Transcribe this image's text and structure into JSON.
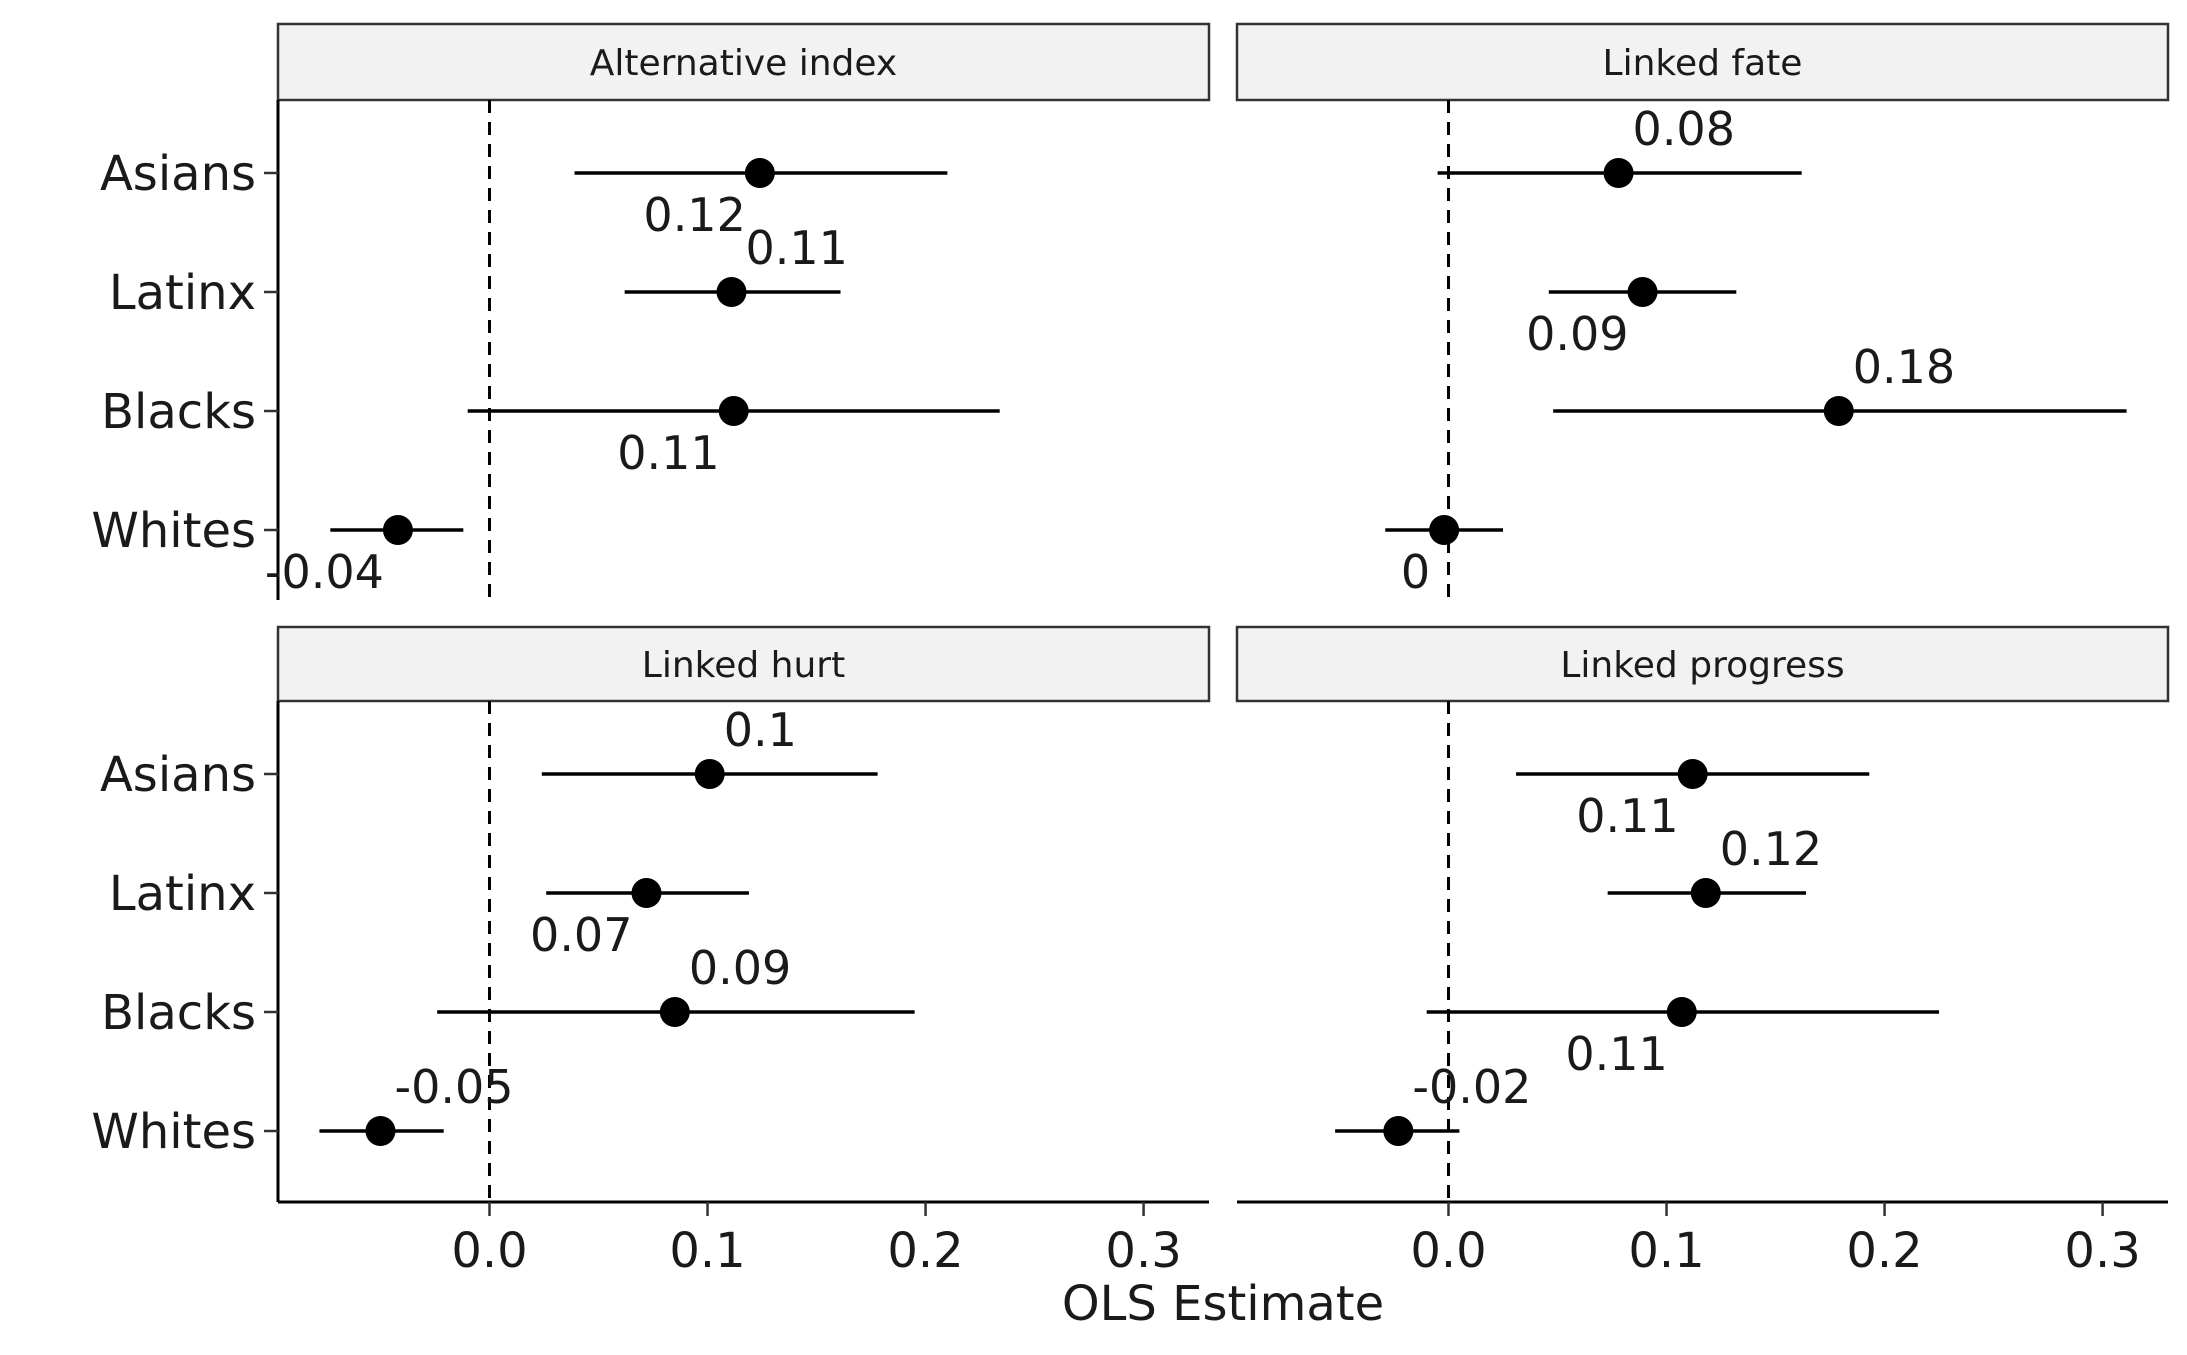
{
  "chart_data": {
    "type": "forest",
    "xlabel": "OLS Estimate",
    "ylabel": "",
    "xlim": [
      -0.097,
      0.33
    ],
    "xticks": [
      0.0,
      0.1,
      0.2,
      0.3
    ],
    "xtick_labels": [
      "0.0",
      "0.1",
      "0.2",
      "0.3"
    ],
    "reference_line": 0,
    "grid": false,
    "categories": [
      "Asians",
      "Latinx",
      "Blacks",
      "Whites"
    ],
    "panels": [
      {
        "title": "Alternative index",
        "points": [
          {
            "group": "Asians",
            "estimate": 0.124,
            "lower": 0.039,
            "upper": 0.21,
            "label": "0.12",
            "label_pos": "below-left"
          },
          {
            "group": "Latinx",
            "estimate": 0.111,
            "lower": 0.062,
            "upper": 0.161,
            "label": "0.11",
            "label_pos": "above-right"
          },
          {
            "group": "Blacks",
            "estimate": 0.112,
            "lower": -0.01,
            "upper": 0.234,
            "label": "0.11",
            "label_pos": "below-left"
          },
          {
            "group": "Whites",
            "estimate": -0.042,
            "lower": -0.073,
            "upper": -0.012,
            "label": "-0.04",
            "label_pos": "below-left"
          }
        ]
      },
      {
        "title": "Linked fate",
        "points": [
          {
            "group": "Asians",
            "estimate": 0.078,
            "lower": -0.005,
            "upper": 0.162,
            "label": "0.08",
            "label_pos": "above-right"
          },
          {
            "group": "Latinx",
            "estimate": 0.089,
            "lower": 0.046,
            "upper": 0.132,
            "label": "0.09",
            "label_pos": "below-left"
          },
          {
            "group": "Blacks",
            "estimate": 0.179,
            "lower": 0.048,
            "upper": 0.311,
            "label": "0.18",
            "label_pos": "above-right"
          },
          {
            "group": "Whites",
            "estimate": -0.002,
            "lower": -0.029,
            "upper": 0.025,
            "label": "0",
            "label_pos": "below-left"
          }
        ]
      },
      {
        "title": "Linked hurt",
        "points": [
          {
            "group": "Asians",
            "estimate": 0.101,
            "lower": 0.024,
            "upper": 0.178,
            "label": "0.1",
            "label_pos": "above-right"
          },
          {
            "group": "Latinx",
            "estimate": 0.072,
            "lower": 0.026,
            "upper": 0.119,
            "label": "0.07",
            "label_pos": "below-left"
          },
          {
            "group": "Blacks",
            "estimate": 0.085,
            "lower": -0.024,
            "upper": 0.195,
            "label": "0.09",
            "label_pos": "above-right"
          },
          {
            "group": "Whites",
            "estimate": -0.05,
            "lower": -0.078,
            "upper": -0.021,
            "label": "-0.05",
            "label_pos": "above-right"
          }
        ]
      },
      {
        "title": "Linked progress",
        "points": [
          {
            "group": "Asians",
            "estimate": 0.112,
            "lower": 0.031,
            "upper": 0.193,
            "label": "0.11",
            "label_pos": "below-left"
          },
          {
            "group": "Latinx",
            "estimate": 0.118,
            "lower": 0.073,
            "upper": 0.164,
            "label": "0.12",
            "label_pos": "above-right"
          },
          {
            "group": "Blacks",
            "estimate": 0.107,
            "lower": -0.01,
            "upper": 0.225,
            "label": "0.11",
            "label_pos": "below-left"
          },
          {
            "group": "Whites",
            "estimate": -0.023,
            "lower": -0.052,
            "upper": 0.005,
            "label": "-0.02",
            "label_pos": "above-right"
          }
        ]
      }
    ]
  }
}
